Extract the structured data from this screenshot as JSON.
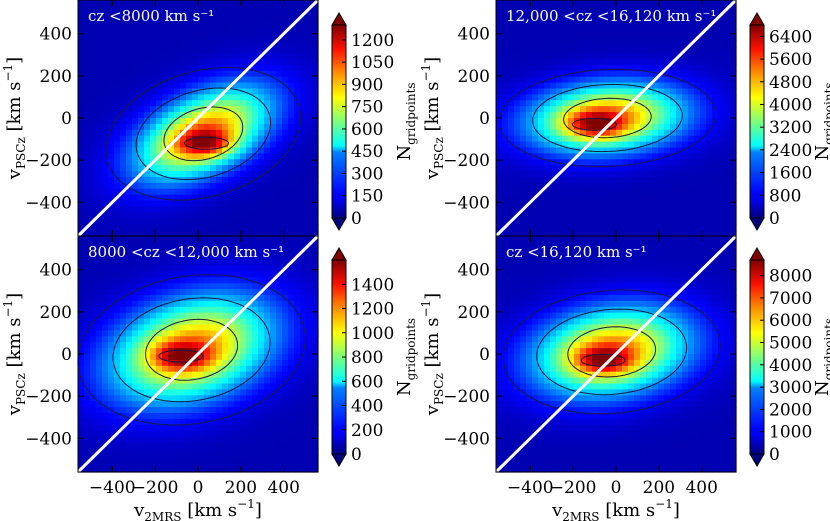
{
  "chart_data": [
    {
      "type": "heatmap",
      "title": "cz <8000 km s⁻¹",
      "xlabel": "",
      "ylabel": "v_PSCz [km s⁻¹]",
      "xlim": [
        -560,
        560
      ],
      "ylim": [
        -560,
        560
      ],
      "x_ticks": [],
      "y_ticks": [
        400,
        200,
        0,
        -200,
        -400
      ],
      "colorbar": {
        "label": "N_gridpoints",
        "ticks": [
          0,
          150,
          300,
          450,
          600,
          750,
          900,
          1050,
          1200
        ],
        "max": 1300
      },
      "center": [
        25,
        -75
      ],
      "spread": [
        210,
        150
      ],
      "rho": 0.5,
      "peak": {
        "x": 40,
        "y": -120
      }
    },
    {
      "type": "heatmap",
      "title": "12,000 <cz <16,120 km s⁻¹",
      "xlabel": "",
      "ylabel": "v_PSCz [km s⁻¹]",
      "xlim": [
        -560,
        560
      ],
      "ylim": [
        -560,
        560
      ],
      "x_ticks": [],
      "y_ticks": [
        400,
        200,
        0,
        -200,
        -400
      ],
      "colorbar": {
        "label": "N_gridpoints",
        "ticks": [
          0,
          800,
          1600,
          2400,
          3200,
          4000,
          4800,
          5600,
          6400
        ],
        "max": 6800
      },
      "center": [
        -40,
        0
      ],
      "spread": [
        240,
        110
      ],
      "rho": 0.15,
      "peak": {
        "x": -100,
        "y": -30
      }
    },
    {
      "type": "heatmap",
      "title": "8000 <cz <12,000 km s⁻¹",
      "xlabel": "v_2MRS [km s⁻¹]",
      "ylabel": "v_PSCz [km s⁻¹]",
      "xlim": [
        -560,
        560
      ],
      "ylim": [
        -560,
        560
      ],
      "x_ticks": [
        -400,
        -200,
        0,
        200,
        400
      ],
      "y_ticks": [
        400,
        200,
        0,
        -200,
        -400
      ],
      "colorbar": {
        "label": "N_gridpoints",
        "ticks": [
          0,
          200,
          400,
          600,
          800,
          1000,
          1200,
          1400
        ],
        "max": 1600
      },
      "center": [
        -30,
        20
      ],
      "spread": [
        250,
        170
      ],
      "rho": 0.3,
      "peak": {
        "x": -80,
        "y": -10
      }
    },
    {
      "type": "heatmap",
      "title": "cz <16,120 km s⁻¹",
      "xlabel": "v_2MRS [km s⁻¹]",
      "ylabel": "v_PSCz [km s⁻¹]",
      "xlim": [
        -560,
        560
      ],
      "ylim": [
        -560,
        560
      ],
      "x_ticks": [
        -400,
        -200,
        0,
        200,
        400
      ],
      "y_ticks": [
        400,
        200,
        0,
        -200,
        -400
      ],
      "colorbar": {
        "label": "N_gridpoints",
        "ticks": [
          0,
          1000,
          2000,
          3000,
          4000,
          5000,
          6000,
          7000,
          8000
        ],
        "max": 8700
      },
      "center": [
        -20,
        10
      ],
      "spread": [
        240,
        140
      ],
      "rho": 0.2,
      "peak": {
        "x": -60,
        "y": -30
      }
    }
  ]
}
